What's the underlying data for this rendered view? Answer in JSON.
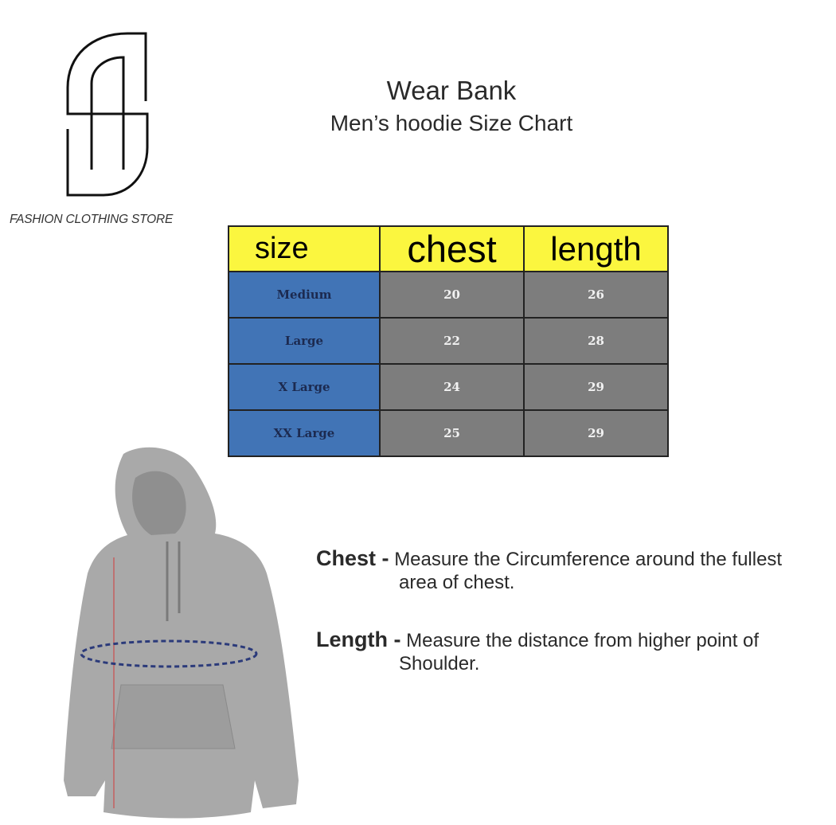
{
  "brand": {
    "logo_text": "FASHION CLOTHING STORE"
  },
  "header": {
    "title": "Wear Bank",
    "subtitle": "Men’s hoodie Size Chart"
  },
  "table": {
    "colors": {
      "header": "#fbf63f",
      "size_col": "#4174b6",
      "value_cells": "#7d7d7d"
    },
    "headers": [
      "size",
      "chest",
      "length"
    ],
    "rows": [
      {
        "size": "Medium",
        "chest": "20",
        "length": "26"
      },
      {
        "size": "Large",
        "chest": "22",
        "length": "28"
      },
      {
        "size": "X Large",
        "chest": "24",
        "length": "29"
      },
      {
        "size": "XX Large",
        "chest": "25",
        "length": "29"
      }
    ]
  },
  "instructions": {
    "chest": {
      "term": "Chest -",
      "line1": "Measure the Circumference around the fullest",
      "line2": "area of chest."
    },
    "length": {
      "term": "Length -",
      "line1": "Measure the distance from higher point of",
      "line2": "Shoulder."
    }
  },
  "illustration": {
    "name": "grey-hoodie"
  }
}
